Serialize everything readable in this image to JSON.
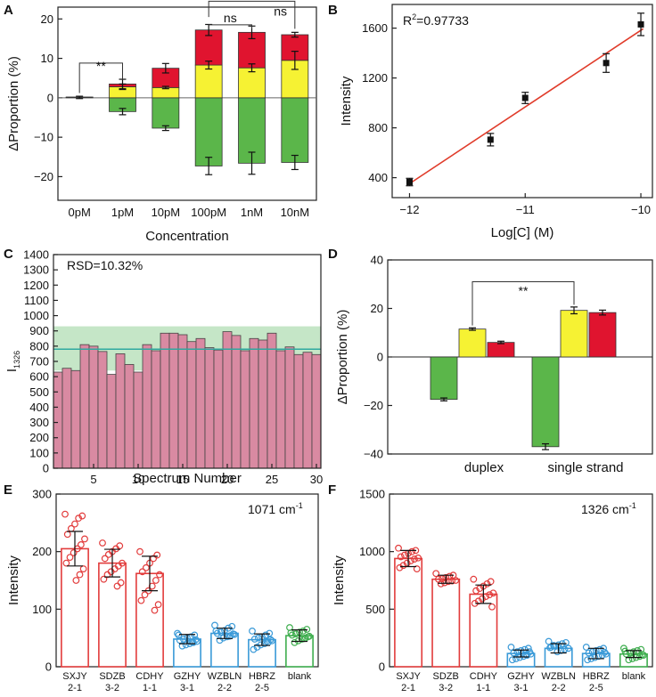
{
  "figure": {
    "panels": [
      "A",
      "B",
      "C",
      "D",
      "E",
      "F"
    ]
  },
  "colors": {
    "green": "#5bb64a",
    "yellow": "#f6f233",
    "red": "#e0142f",
    "pink": "#d98aa2",
    "teal": "#2fa9a0",
    "band": "#9fd6a2",
    "fitline": "#e03b2a",
    "barRed": "#e23c3c",
    "barBlue": "#3a9ad8",
    "barGreen": "#3fae4f"
  },
  "chart_data": [
    {
      "panel": "A",
      "type": "bar",
      "stacked": true,
      "xlabel": "Concentration",
      "ylabel": "ΔProportion (%)",
      "ylim": [
        -26,
        23
      ],
      "yticks": [
        -20,
        -10,
        0,
        10,
        20
      ],
      "categories": [
        "0pM",
        "1pM",
        "10pM",
        "100pM",
        "1nM",
        "10nM"
      ],
      "series": [
        {
          "name": "green",
          "color": "#5bb64a",
          "values": [
            0,
            -3.5,
            -7.7,
            -17.3,
            -16.6,
            -16.4
          ],
          "errors": [
            0,
            0.8,
            0.6,
            2.2,
            2.8,
            1.8
          ]
        },
        {
          "name": "yellow",
          "color": "#f6f233",
          "values": [
            0.1,
            2.8,
            2.6,
            8.3,
            7.6,
            9.5
          ],
          "errors": [
            0.3,
            0.7,
            0.3,
            1.0,
            1.0,
            2.3
          ]
        },
        {
          "name": "red",
          "color": "#e0142f",
          "values": [
            0.1,
            0.7,
            4.9,
            8.9,
            9.0,
            6.5
          ],
          "errors": [
            0,
            1.2,
            1.2,
            1.4,
            1.6,
            0.6
          ]
        }
      ],
      "annotations": [
        {
          "text": "**",
          "from": "0pM",
          "to": "1pM"
        },
        {
          "text": "ns",
          "from": "100pM",
          "to": "1nM"
        },
        {
          "text": "ns",
          "from": "100pM",
          "to": "10nM"
        }
      ]
    },
    {
      "panel": "B",
      "type": "scatter",
      "title": "R²=0.97733",
      "r2_label": "R",
      "r2_value": "=0.97733",
      "xlabel": "Log[C] (M)",
      "ylabel": "Intensity",
      "xlim": [
        -12.15,
        -9.9
      ],
      "ylim": [
        240,
        1790
      ],
      "xticks": [
        -12,
        -11,
        -10
      ],
      "yticks": [
        400,
        800,
        1200,
        1600
      ],
      "points": [
        {
          "x": -12,
          "y": 365,
          "err": 30
        },
        {
          "x": -11.3,
          "y": 705,
          "err": 50
        },
        {
          "x": -11,
          "y": 1040,
          "err": 45
        },
        {
          "x": -10.3,
          "y": 1320,
          "err": 75
        },
        {
          "x": -10,
          "y": 1630,
          "err": 90
        }
      ],
      "fit": {
        "x": [
          -12.02,
          -9.98
        ],
        "y": [
          340,
          1595
        ]
      }
    },
    {
      "panel": "C",
      "type": "bar",
      "title": "RSD=10.32%",
      "xlabel": "Spectrum Number",
      "ylabel": "I1326",
      "ylabel_main": "I",
      "ylabel_sub": "1326",
      "xlim": [
        0.5,
        30.5
      ],
      "ylim": [
        0,
        1400
      ],
      "xticks": [
        5,
        10,
        15,
        20,
        25,
        30
      ],
      "yticks": [
        0,
        100,
        200,
        300,
        400,
        500,
        600,
        700,
        800,
        900,
        1000,
        1100,
        1200,
        1300,
        1400
      ],
      "x": [
        1,
        2,
        3,
        4,
        5,
        6,
        7,
        8,
        9,
        10,
        11,
        12,
        13,
        14,
        15,
        16,
        17,
        18,
        19,
        20,
        21,
        22,
        23,
        24,
        25,
        26,
        27,
        28,
        29,
        30
      ],
      "values": [
        630,
        655,
        640,
        810,
        800,
        765,
        615,
        750,
        680,
        630,
        810,
        770,
        885,
        885,
        875,
        830,
        850,
        790,
        775,
        895,
        870,
        770,
        850,
        840,
        885,
        770,
        795,
        745,
        760,
        745
      ],
      "mean": 780,
      "band": [
        640,
        930
      ]
    },
    {
      "panel": "D",
      "type": "bar",
      "xlabel": "",
      "ylabel": "ΔProportion (%)",
      "ylim": [
        -40,
        40
      ],
      "yticks": [
        -40,
        -20,
        0,
        20,
        40
      ],
      "categories": [
        "duplex",
        "single strand"
      ],
      "series": [
        {
          "name": "green",
          "color": "#5bb64a",
          "values": [
            -17.5,
            -37
          ],
          "errors": [
            0.6,
            1.2
          ]
        },
        {
          "name": "yellow",
          "color": "#f6f233",
          "values": [
            11.5,
            19.2
          ],
          "errors": [
            0.5,
            1.4
          ]
        },
        {
          "name": "red",
          "color": "#e0142f",
          "values": [
            6,
            18.3
          ],
          "errors": [
            0.5,
            1.0
          ]
        }
      ],
      "annotations": [
        {
          "text": "**",
          "from": "duplex",
          "to": "single strand"
        }
      ]
    },
    {
      "panel": "E",
      "type": "bar",
      "annotation": "1071 cm",
      "annotation_unit": "cm",
      "annotation_prefix": "1071",
      "annotation_sup": "-1",
      "xlabel": "",
      "ylabel": "Intensity",
      "ylim": [
        0,
        300
      ],
      "yticks": [
        0,
        100,
        200,
        300
      ],
      "categories": [
        [
          "SXJY",
          "2-1"
        ],
        [
          "SDZB",
          "3-2"
        ],
        [
          "CDHY",
          "1-1"
        ],
        [
          "GZHY",
          "3-1"
        ],
        [
          "WZBLN",
          "2-2"
        ],
        [
          "HBRZ",
          "2-5"
        ],
        [
          "blank"
        ]
      ],
      "values": [
        205,
        180,
        162,
        48,
        58,
        47,
        54
      ],
      "errors": [
        30,
        24,
        30,
        8,
        9,
        10,
        10
      ],
      "colors": [
        "#e23c3c",
        "#e23c3c",
        "#e23c3c",
        "#3a9ad8",
        "#3a9ad8",
        "#3a9ad8",
        "#3fae4f"
      ],
      "points": [
        [
          265,
          262,
          258,
          248,
          240,
          230,
          222,
          212,
          205,
          198,
          190,
          180,
          170,
          160,
          150
        ],
        [
          215,
          210,
          205,
          200,
          195,
          188,
          180,
          175,
          170,
          165,
          160,
          152,
          146,
          140
        ],
        [
          200,
          194,
          188,
          180,
          172,
          165,
          160,
          150,
          140,
          132,
          125,
          115,
          108,
          98
        ],
        [
          58,
          55,
          52,
          50,
          48,
          46,
          44,
          42,
          40,
          38,
          36,
          55,
          47,
          43
        ],
        [
          72,
          70,
          67,
          63,
          60,
          58,
          56,
          54,
          52,
          50,
          46,
          62,
          57,
          53
        ],
        [
          62,
          58,
          55,
          52,
          50,
          48,
          45,
          42,
          40,
          38,
          34,
          30,
          47,
          44
        ],
        [
          68,
          65,
          62,
          60,
          57,
          55,
          53,
          50,
          48,
          45,
          42,
          59,
          52,
          49
        ]
      ]
    },
    {
      "panel": "F",
      "type": "bar",
      "annotation": "1326 cm",
      "annotation_prefix": "1326",
      "annotation_sup": "-1",
      "xlabel": "",
      "ylabel": "Intensity",
      "ylim": [
        0,
        1500
      ],
      "yticks": [
        0,
        500,
        1000,
        1500
      ],
      "categories": [
        [
          "SXJY",
          "2-1"
        ],
        [
          "SDZB",
          "3-2"
        ],
        [
          "CDHY",
          "1-1"
        ],
        [
          "GZHY",
          "3-1"
        ],
        [
          "WZBLN",
          "2-2"
        ],
        [
          "HBRZ",
          "2-5"
        ],
        [
          "blank"
        ]
      ],
      "values": [
        940,
        760,
        630,
        115,
        160,
        115,
        110
      ],
      "errors": [
        70,
        35,
        80,
        30,
        40,
        45,
        30
      ],
      "colors": [
        "#e23c3c",
        "#e23c3c",
        "#e23c3c",
        "#3a9ad8",
        "#3a9ad8",
        "#3a9ad8",
        "#3fae4f"
      ],
      "points": [
        [
          1030,
          1010,
          1000,
          985,
          970,
          955,
          945,
          935,
          920,
          900,
          880,
          860,
          850
        ],
        [
          810,
          795,
          785,
          775,
          765,
          760,
          750,
          745,
          740,
          730,
          720
        ],
        [
          760,
          740,
          720,
          700,
          680,
          660,
          640,
          625,
          610,
          590,
          570,
          550,
          520
        ],
        [
          170,
          160,
          150,
          140,
          130,
          120,
          110,
          100,
          90,
          80,
          70,
          60,
          130,
          105
        ],
        [
          220,
          210,
          200,
          190,
          180,
          170,
          160,
          150,
          140,
          130,
          185,
          165
        ],
        [
          170,
          160,
          150,
          140,
          130,
          120,
          110,
          100,
          90,
          80,
          70,
          60,
          125
        ],
        [
          160,
          150,
          140,
          130,
          120,
          110,
          100,
          90,
          80,
          70,
          60,
          135,
          105
        ]
      ]
    }
  ]
}
